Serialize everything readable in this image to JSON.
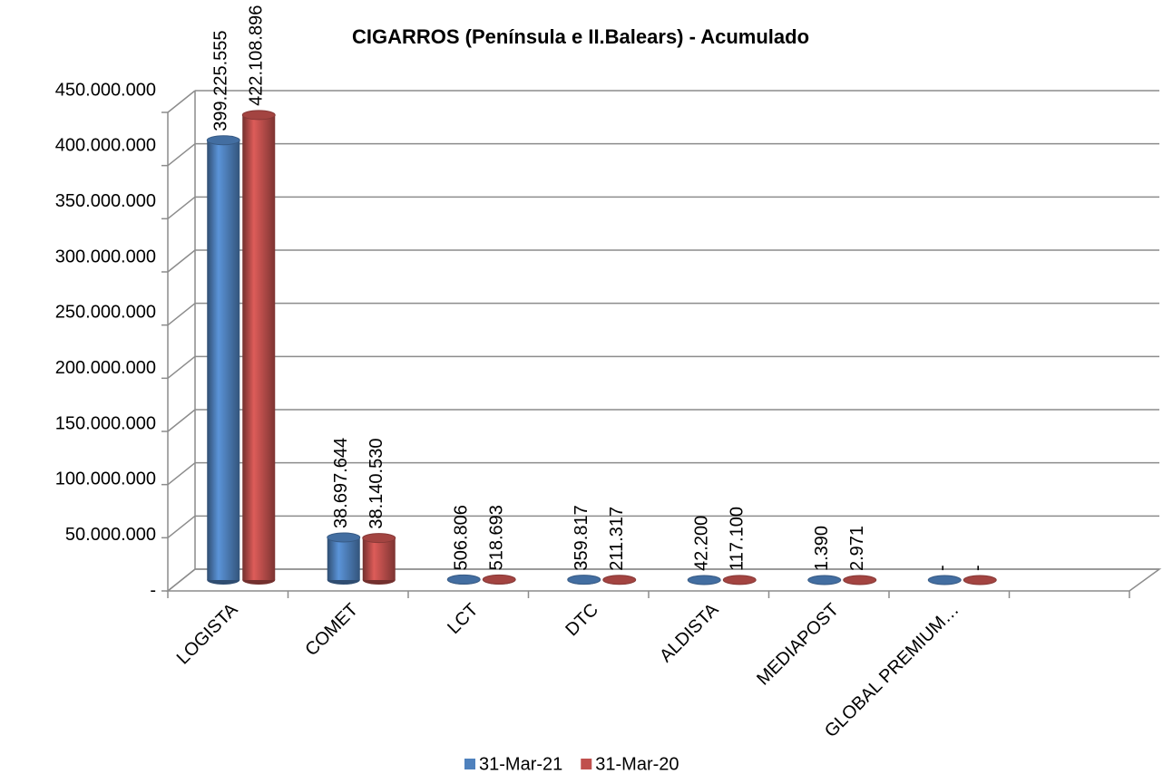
{
  "chart_data": {
    "type": "bar3d",
    "title": "CIGARROS  (Península e II.Balears) - Acumulado",
    "categories": [
      "LOGISTA",
      "COMET",
      "LCT",
      "DTC",
      "ALDISTA",
      "MEDIAPOST",
      "GLOBAL PREMIUM…",
      null
    ],
    "series": [
      {
        "name": "31-Mar-21",
        "color": "#4f81bd",
        "values": [
          399225555,
          38697644,
          506806,
          359817,
          42200,
          1390,
          0,
          null
        ],
        "value_labels": [
          "399.225.555",
          "38.697.644",
          "506.806",
          "359.817",
          "42.200",
          "1.390",
          "-",
          null
        ]
      },
      {
        "name": "31-Mar-20",
        "color": "#c0504d",
        "values": [
          422108896,
          38140530,
          518693,
          211317,
          117100,
          2971,
          0,
          null
        ],
        "value_labels": [
          "422.108.896",
          "38.140.530",
          "518.693",
          "211.317",
          "117.100",
          "2.971",
          "-",
          null
        ]
      }
    ],
    "ylim": [
      0,
      450000000
    ],
    "yticks": [
      {
        "value": 0,
        "label": "-"
      },
      {
        "value": 50000000,
        "label": "50.000.000"
      },
      {
        "value": 100000000,
        "label": "100.000.000"
      },
      {
        "value": 150000000,
        "label": "150.000.000"
      },
      {
        "value": 200000000,
        "label": "200.000.000"
      },
      {
        "value": 250000000,
        "label": "250.000.000"
      },
      {
        "value": 300000000,
        "label": "300.000.000"
      },
      {
        "value": 350000000,
        "label": "350.000.000"
      },
      {
        "value": 400000000,
        "label": "400.000.000"
      },
      {
        "value": 450000000,
        "label": "450.000.000"
      }
    ],
    "grid": true,
    "legend": "bottom"
  }
}
